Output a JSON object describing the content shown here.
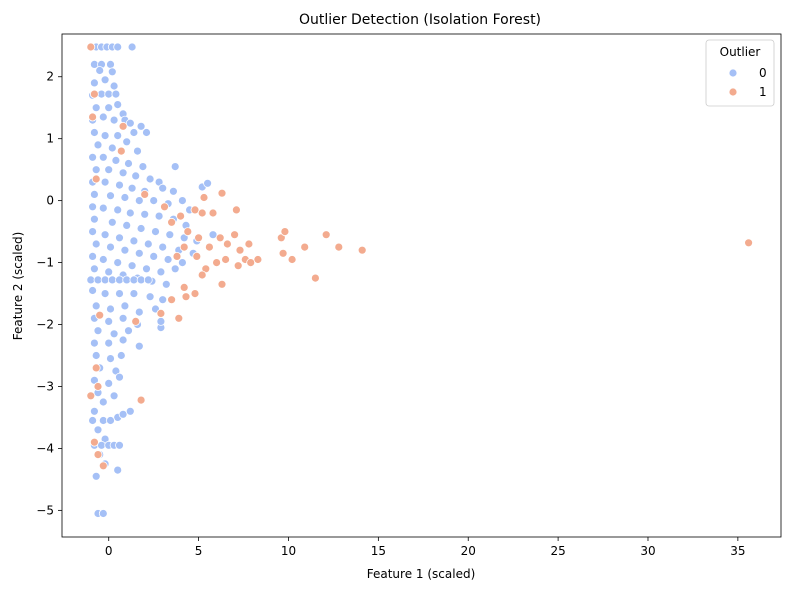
{
  "chart_data": {
    "type": "scatter",
    "title": "Outlier Detection (Isolation Forest)",
    "xlabel": "Feature 1 (scaled)",
    "ylabel": "Feature 2 (scaled)",
    "xlim": [
      -2.6,
      37.4
    ],
    "ylim": [
      -5.43,
      2.69
    ],
    "xticks": [
      0,
      5,
      10,
      15,
      20,
      25,
      30,
      35
    ],
    "yticks": [
      2,
      1,
      0,
      -1,
      -2,
      -3,
      -4,
      -5
    ],
    "xtick_labels": [
      "0",
      "5",
      "10",
      "15",
      "20",
      "25",
      "30",
      "35"
    ],
    "ytick_labels": [
      "2",
      "1",
      "0",
      "−1",
      "−2",
      "−3",
      "−4",
      "−5"
    ],
    "grid": false,
    "legend": {
      "title": "Outlier",
      "placement": "top-right",
      "entries": [
        "0",
        "1"
      ]
    },
    "colors": {
      "0": "#a5c0f6",
      "1": "#f3ab8f"
    },
    "series": [
      {
        "name": "0",
        "points": [
          [
            -1.0,
            2.48
          ],
          [
            -0.7,
            2.48
          ],
          [
            -0.4,
            2.48
          ],
          [
            -0.1,
            2.48
          ],
          [
            0.2,
            2.48
          ],
          [
            0.5,
            2.48
          ],
          [
            1.3,
            2.48
          ],
          [
            -0.8,
            2.2
          ],
          [
            -0.4,
            2.2
          ],
          [
            0.1,
            2.2
          ],
          [
            -0.5,
            2.1
          ],
          [
            0.2,
            2.08
          ],
          [
            -0.8,
            1.9
          ],
          [
            -0.2,
            1.95
          ],
          [
            0.3,
            1.85
          ],
          [
            -0.9,
            1.7
          ],
          [
            -0.4,
            1.72
          ],
          [
            0.0,
            1.72
          ],
          [
            0.4,
            1.72
          ],
          [
            -0.7,
            1.5
          ],
          [
            0.0,
            1.5
          ],
          [
            0.5,
            1.55
          ],
          [
            0.8,
            1.4
          ],
          [
            -0.9,
            1.3
          ],
          [
            -0.3,
            1.35
          ],
          [
            0.3,
            1.3
          ],
          [
            0.9,
            1.3
          ],
          [
            1.2,
            1.25
          ],
          [
            1.8,
            1.2
          ],
          [
            2.1,
            1.1
          ],
          [
            1.4,
            1.1
          ],
          [
            -0.8,
            1.1
          ],
          [
            -0.2,
            1.05
          ],
          [
            0.5,
            1.05
          ],
          [
            1.0,
            0.95
          ],
          [
            -0.6,
            0.9
          ],
          [
            0.2,
            0.85
          ],
          [
            0.7,
            0.8
          ],
          [
            1.6,
            0.8
          ],
          [
            -0.9,
            0.7
          ],
          [
            -0.3,
            0.7
          ],
          [
            0.4,
            0.65
          ],
          [
            1.1,
            0.6
          ],
          [
            1.9,
            0.55
          ],
          [
            -0.7,
            0.5
          ],
          [
            0.0,
            0.5
          ],
          [
            0.8,
            0.45
          ],
          [
            1.5,
            0.4
          ],
          [
            2.3,
            0.35
          ],
          [
            2.8,
            0.3
          ],
          [
            3.7,
            0.55
          ],
          [
            -0.9,
            0.3
          ],
          [
            -0.2,
            0.3
          ],
          [
            0.6,
            0.25
          ],
          [
            1.3,
            0.2
          ],
          [
            2.0,
            0.15
          ],
          [
            3.0,
            0.2
          ],
          [
            3.6,
            0.15
          ],
          [
            4.1,
            0.0
          ],
          [
            5.2,
            0.22
          ],
          [
            5.5,
            0.28
          ],
          [
            -0.8,
            0.1
          ],
          [
            0.1,
            0.08
          ],
          [
            0.9,
            0.05
          ],
          [
            1.7,
            0.0
          ],
          [
            2.5,
            0.0
          ],
          [
            3.3,
            -0.05
          ],
          [
            4.5,
            -0.15
          ],
          [
            5.8,
            -0.55
          ],
          [
            -0.9,
            -0.1
          ],
          [
            -0.3,
            -0.12
          ],
          [
            0.5,
            -0.15
          ],
          [
            1.2,
            -0.2
          ],
          [
            2.0,
            -0.22
          ],
          [
            2.8,
            -0.25
          ],
          [
            3.6,
            -0.3
          ],
          [
            4.3,
            -0.4
          ],
          [
            -0.8,
            -0.3
          ],
          [
            0.2,
            -0.35
          ],
          [
            1.0,
            -0.4
          ],
          [
            1.8,
            -0.45
          ],
          [
            2.6,
            -0.5
          ],
          [
            3.4,
            -0.55
          ],
          [
            4.2,
            -0.6
          ],
          [
            4.9,
            -0.65
          ],
          [
            -0.9,
            -0.5
          ],
          [
            -0.2,
            -0.55
          ],
          [
            0.6,
            -0.6
          ],
          [
            1.4,
            -0.65
          ],
          [
            2.2,
            -0.7
          ],
          [
            3.0,
            -0.75
          ],
          [
            3.9,
            -0.8
          ],
          [
            4.7,
            -0.85
          ],
          [
            -0.7,
            -0.7
          ],
          [
            0.1,
            -0.75
          ],
          [
            0.9,
            -0.8
          ],
          [
            1.7,
            -0.85
          ],
          [
            2.5,
            -0.9
          ],
          [
            3.3,
            -0.95
          ],
          [
            4.1,
            -1.0
          ],
          [
            -0.9,
            -0.9
          ],
          [
            -0.3,
            -0.95
          ],
          [
            0.5,
            -1.0
          ],
          [
            1.3,
            -1.05
          ],
          [
            2.1,
            -1.1
          ],
          [
            2.9,
            -1.15
          ],
          [
            3.7,
            -1.1
          ],
          [
            -0.8,
            -1.1
          ],
          [
            0.0,
            -1.15
          ],
          [
            0.8,
            -1.2
          ],
          [
            1.6,
            -1.25
          ],
          [
            2.4,
            -1.3
          ],
          [
            3.2,
            -1.35
          ],
          [
            -1.0,
            -1.28
          ],
          [
            -0.6,
            -1.28
          ],
          [
            -0.2,
            -1.28
          ],
          [
            0.2,
            -1.28
          ],
          [
            0.6,
            -1.28
          ],
          [
            1.0,
            -1.28
          ],
          [
            1.4,
            -1.28
          ],
          [
            1.8,
            -1.28
          ],
          [
            2.2,
            -1.28
          ],
          [
            -0.9,
            -1.45
          ],
          [
            -0.2,
            -1.5
          ],
          [
            0.6,
            -1.5
          ],
          [
            1.4,
            -1.5
          ],
          [
            2.3,
            -1.55
          ],
          [
            3.0,
            -1.6
          ],
          [
            -0.7,
            -1.7
          ],
          [
            0.1,
            -1.75
          ],
          [
            0.9,
            -1.7
          ],
          [
            1.7,
            -1.8
          ],
          [
            2.6,
            -1.75
          ],
          [
            -0.8,
            -1.9
          ],
          [
            0.0,
            -1.95
          ],
          [
            0.8,
            -1.9
          ],
          [
            1.6,
            -2.0
          ],
          [
            -0.6,
            -2.1
          ],
          [
            0.3,
            -2.15
          ],
          [
            1.1,
            -2.1
          ],
          [
            2.9,
            -2.05
          ],
          [
            -0.8,
            -2.3
          ],
          [
            0.0,
            -2.3
          ],
          [
            0.8,
            -2.25
          ],
          [
            1.7,
            -2.35
          ],
          [
            2.9,
            -1.95
          ],
          [
            -0.7,
            -2.5
          ],
          [
            0.1,
            -2.55
          ],
          [
            0.7,
            -2.5
          ],
          [
            -0.5,
            -2.7
          ],
          [
            0.4,
            -2.75
          ],
          [
            -0.8,
            -2.9
          ],
          [
            0.0,
            -2.95
          ],
          [
            0.6,
            -2.85
          ],
          [
            -0.6,
            -3.1
          ],
          [
            0.3,
            -3.15
          ],
          [
            -0.3,
            -3.25
          ],
          [
            -0.8,
            -3.4
          ],
          [
            0.5,
            -3.5
          ],
          [
            0.8,
            -3.45
          ],
          [
            1.2,
            -3.4
          ],
          [
            -0.9,
            -3.55
          ],
          [
            -0.3,
            -3.55
          ],
          [
            0.1,
            -3.55
          ],
          [
            -0.6,
            -3.7
          ],
          [
            -0.2,
            -3.85
          ],
          [
            -0.8,
            -3.95
          ],
          [
            -0.4,
            -3.95
          ],
          [
            0.0,
            -3.95
          ],
          [
            0.3,
            -3.95
          ],
          [
            0.6,
            -3.95
          ],
          [
            -0.5,
            -4.1
          ],
          [
            -0.2,
            -4.25
          ],
          [
            0.5,
            -4.35
          ],
          [
            -0.7,
            -4.45
          ],
          [
            -0.6,
            -5.05
          ],
          [
            -0.3,
            -5.05
          ]
        ]
      },
      {
        "name": "1",
        "points": [
          [
            -1.0,
            2.48
          ],
          [
            -0.8,
            1.72
          ],
          [
            0.8,
            1.2
          ],
          [
            -0.9,
            1.35
          ],
          [
            0.7,
            0.8
          ],
          [
            -0.7,
            0.35
          ],
          [
            2.0,
            0.1
          ],
          [
            3.1,
            -0.1
          ],
          [
            3.5,
            -0.35
          ],
          [
            4.0,
            -0.25
          ],
          [
            4.8,
            -0.15
          ],
          [
            5.2,
            -0.2
          ],
          [
            5.3,
            0.05
          ],
          [
            5.8,
            -0.2
          ],
          [
            6.3,
            0.12
          ],
          [
            7.1,
            -0.15
          ],
          [
            4.4,
            -0.5
          ],
          [
            5.0,
            -0.6
          ],
          [
            5.6,
            -0.75
          ],
          [
            6.2,
            -0.6
          ],
          [
            6.6,
            -0.7
          ],
          [
            7.0,
            -0.55
          ],
          [
            7.3,
            -0.8
          ],
          [
            7.8,
            -0.7
          ],
          [
            8.3,
            -0.95
          ],
          [
            4.2,
            -0.75
          ],
          [
            4.9,
            -0.9
          ],
          [
            5.4,
            -1.1
          ],
          [
            6.0,
            -1.0
          ],
          [
            6.5,
            -0.95
          ],
          [
            7.2,
            -1.05
          ],
          [
            7.6,
            -0.95
          ],
          [
            7.9,
            -1.0
          ],
          [
            3.8,
            -0.9
          ],
          [
            5.2,
            -1.2
          ],
          [
            6.3,
            -1.35
          ],
          [
            9.6,
            -0.6
          ],
          [
            9.8,
            -0.5
          ],
          [
            9.7,
            -0.85
          ],
          [
            10.2,
            -0.95
          ],
          [
            10.9,
            -0.75
          ],
          [
            11.5,
            -1.25
          ],
          [
            12.1,
            -0.55
          ],
          [
            12.8,
            -0.75
          ],
          [
            14.1,
            -0.8
          ],
          [
            3.5,
            -1.6
          ],
          [
            4.2,
            -1.4
          ],
          [
            4.3,
            -1.55
          ],
          [
            4.8,
            -1.5
          ],
          [
            3.9,
            -1.9
          ],
          [
            2.9,
            -1.82
          ],
          [
            -0.5,
            -1.85
          ],
          [
            1.5,
            -1.95
          ],
          [
            -0.7,
            -2.7
          ],
          [
            -0.6,
            -3.0
          ],
          [
            -1.0,
            -3.15
          ],
          [
            1.8,
            -3.22
          ],
          [
            -0.8,
            -3.9
          ],
          [
            -0.6,
            -4.1
          ],
          [
            -0.3,
            -4.28
          ],
          [
            35.6,
            -0.68
          ]
        ]
      }
    ]
  }
}
